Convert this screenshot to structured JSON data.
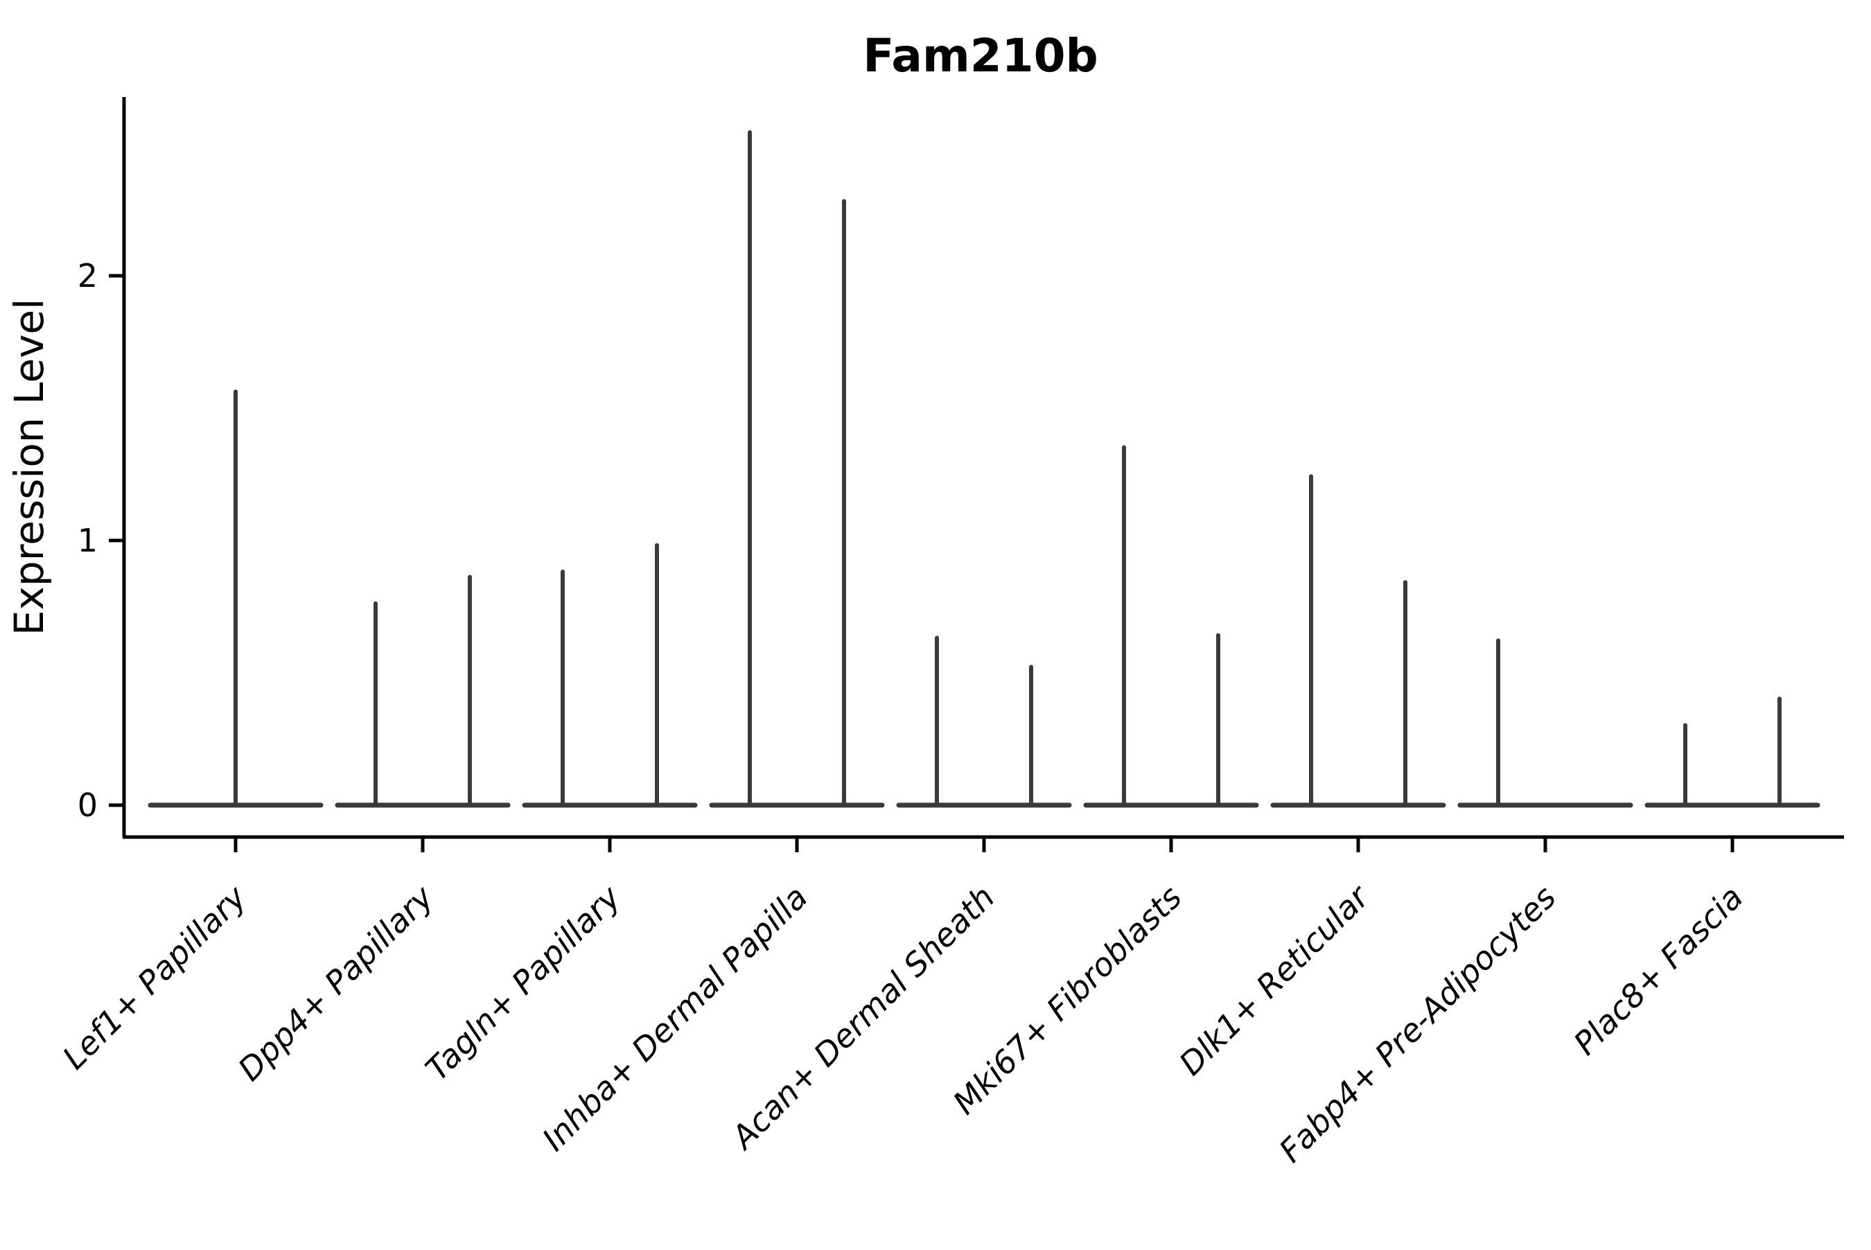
{
  "title": "Fam210b",
  "chart_data": {
    "type": "violin",
    "title": "Fam210b",
    "ylabel": "Expression Level",
    "xlabel": "",
    "yticks": [
      0,
      1,
      2
    ],
    "ylim": [
      -0.12,
      2.68
    ],
    "grid": false,
    "legend": "none",
    "violin_color": "#3a3a3a",
    "axis_color": "#000000",
    "categories": [
      "Lef1+ Papillary",
      "Dpp4+ Papillary",
      "Tagln+ Papillary",
      "Inhba+ Dermal Papilla",
      "Acan+ Dermal Sheath",
      "Mki67+ Fibroblasts",
      "Dlk1+ Reticular",
      "Fabp4+ Pre-Adipocytes",
      "Plac8+ Fascia"
    ],
    "groups": [
      {
        "category": "Lef1+ Papillary",
        "violins": [
          {
            "slot": "full",
            "max_expression": 1.57
          }
        ]
      },
      {
        "category": "Dpp4+ Papillary",
        "violins": [
          {
            "slot": "left",
            "max_expression": 0.77
          },
          {
            "slot": "right",
            "max_expression": 0.87
          }
        ]
      },
      {
        "category": "Tagln+ Papillary",
        "violins": [
          {
            "slot": "left",
            "max_expression": 0.89
          },
          {
            "slot": "right",
            "max_expression": 0.99
          }
        ]
      },
      {
        "category": "Inhba+ Dermal Papilla",
        "violins": [
          {
            "slot": "left",
            "max_expression": 2.55
          },
          {
            "slot": "right",
            "max_expression": 2.29
          }
        ]
      },
      {
        "category": "Acan+ Dermal Sheath",
        "violins": [
          {
            "slot": "left",
            "max_expression": 0.64
          },
          {
            "slot": "right",
            "max_expression": 0.53
          }
        ]
      },
      {
        "category": "Mki67+ Fibroblasts",
        "violins": [
          {
            "slot": "left",
            "max_expression": 1.36
          },
          {
            "slot": "right",
            "max_expression": 0.65
          }
        ]
      },
      {
        "category": "Dlk1+ Reticular",
        "violins": [
          {
            "slot": "left",
            "max_expression": 1.25
          },
          {
            "slot": "right",
            "max_expression": 0.85
          }
        ]
      },
      {
        "category": "Fabp4+ Pre-Adipocytes",
        "violins": [
          {
            "slot": "left",
            "max_expression": 0.63
          },
          {
            "slot": "right",
            "max_expression": 0.0
          }
        ]
      },
      {
        "category": "Plac8+ Fascia",
        "violins": [
          {
            "slot": "left",
            "max_expression": 0.31
          },
          {
            "slot": "right",
            "max_expression": 0.41
          }
        ]
      }
    ],
    "baseline_value": 0
  }
}
